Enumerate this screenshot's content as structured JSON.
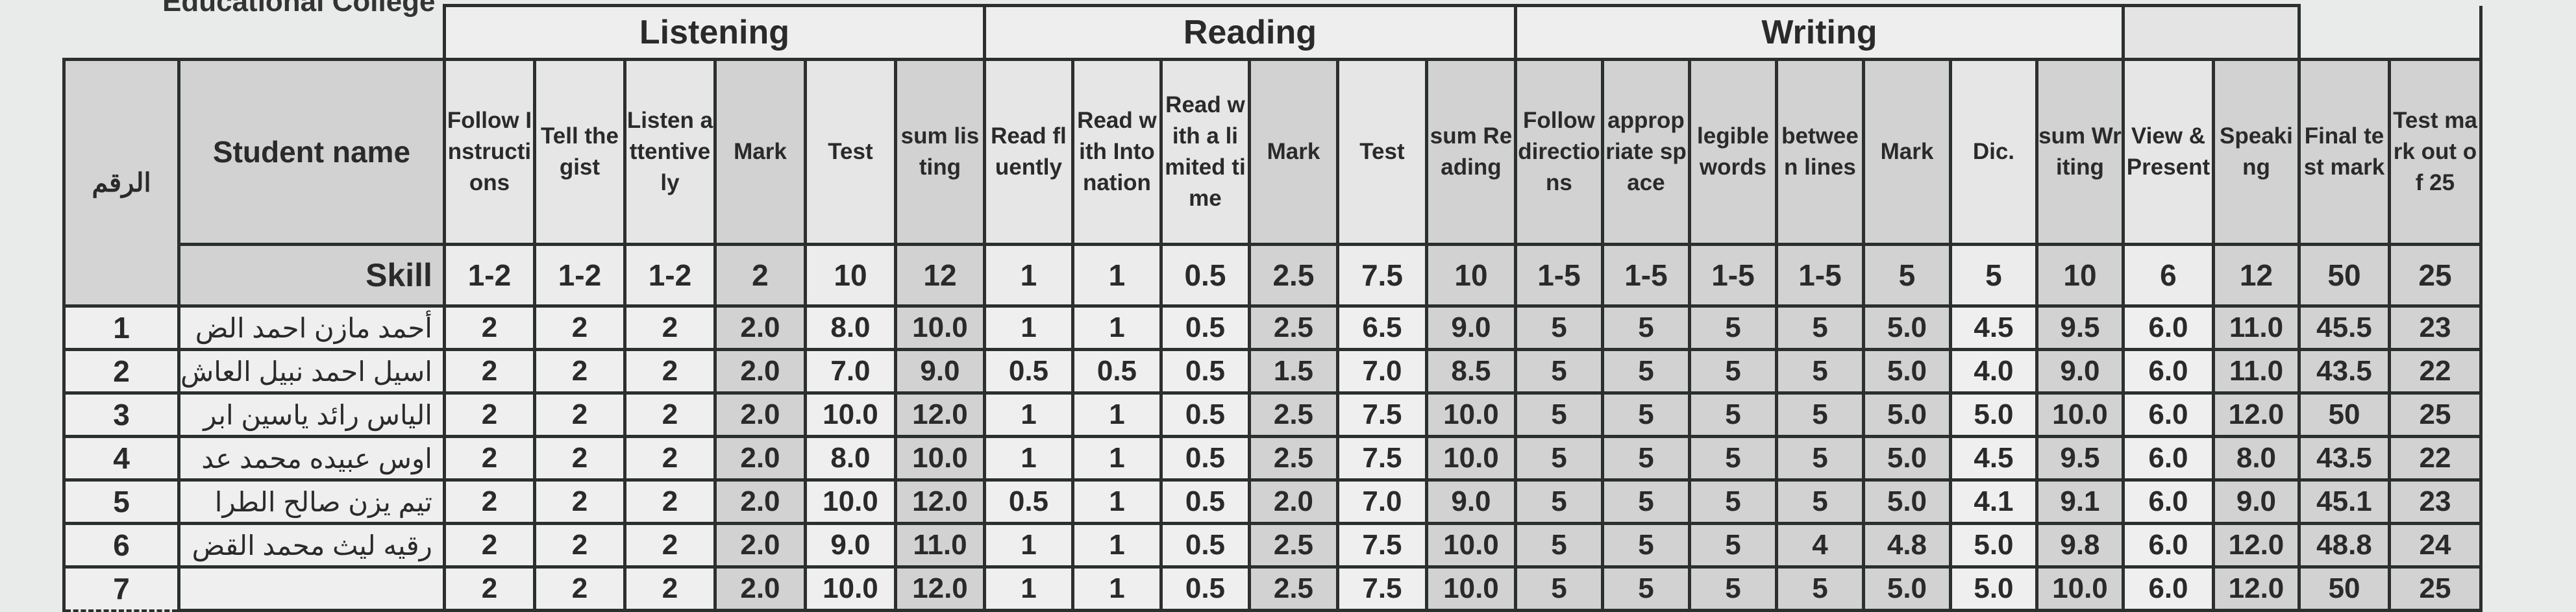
{
  "college": "Educational College",
  "sections": {
    "listening": "Listening",
    "reading": "Reading",
    "writing": "Writing"
  },
  "headers": {
    "rank": "الرقم",
    "name": "Student name",
    "columns": [
      "Follow Instructions",
      "Tell the gist",
      "Listen attentively",
      "Mark",
      "Test",
      "sum listing",
      "Read fluently",
      "Read with Intonation",
      "Read with a limited time",
      "Mark",
      "Test",
      "sum Reading",
      "Follow directions",
      "appropriate space",
      "legible words",
      "between lines",
      "Mark",
      "Dic.",
      "sum Writing",
      "View & Present",
      "Speaking",
      "Final test mark",
      "Test mark out of 25"
    ]
  },
  "skill": {
    "label": "Skill",
    "values": [
      "1-2",
      "1-2",
      "1-2",
      "2",
      "10",
      "12",
      "1",
      "1",
      "0.5",
      "2.5",
      "7.5",
      "10",
      "1-5",
      "1-5",
      "1-5",
      "1-5",
      "5",
      "5",
      "10",
      "6",
      "12",
      "50",
      "25"
    ]
  },
  "rows": [
    {
      "rank": "1",
      "name": "أحمد مازن احمد الض",
      "values": [
        "2",
        "2",
        "2",
        "2.0",
        "8.0",
        "10.0",
        "1",
        "1",
        "0.5",
        "2.5",
        "6.5",
        "9.0",
        "5",
        "5",
        "5",
        "5",
        "5.0",
        "4.5",
        "9.5",
        "6.0",
        "11.0",
        "45.5",
        "23"
      ]
    },
    {
      "rank": "2",
      "name": "اسيل احمد نبيل العاش",
      "values": [
        "2",
        "2",
        "2",
        "2.0",
        "7.0",
        "9.0",
        "0.5",
        "0.5",
        "0.5",
        "1.5",
        "7.0",
        "8.5",
        "5",
        "5",
        "5",
        "5",
        "5.0",
        "4.0",
        "9.0",
        "6.0",
        "11.0",
        "43.5",
        "22"
      ]
    },
    {
      "rank": "3",
      "name": "الياس رائد ياسين ابر",
      "values": [
        "2",
        "2",
        "2",
        "2.0",
        "10.0",
        "12.0",
        "1",
        "1",
        "0.5",
        "2.5",
        "7.5",
        "10.0",
        "5",
        "5",
        "5",
        "5",
        "5.0",
        "5.0",
        "10.0",
        "6.0",
        "12.0",
        "50",
        "25"
      ]
    },
    {
      "rank": "4",
      "name": "اوس عبيده محمد عد",
      "values": [
        "2",
        "2",
        "2",
        "2.0",
        "8.0",
        "10.0",
        "1",
        "1",
        "0.5",
        "2.5",
        "7.5",
        "10.0",
        "5",
        "5",
        "5",
        "5",
        "5.0",
        "4.5",
        "9.5",
        "6.0",
        "8.0",
        "43.5",
        "22"
      ]
    },
    {
      "rank": "5",
      "name": "تيم يزن صالح الطرا",
      "values": [
        "2",
        "2",
        "2",
        "2.0",
        "10.0",
        "12.0",
        "0.5",
        "1",
        "0.5",
        "2.0",
        "7.0",
        "9.0",
        "5",
        "5",
        "5",
        "5",
        "5.0",
        "4.1",
        "9.1",
        "6.0",
        "9.0",
        "45.1",
        "23"
      ]
    },
    {
      "rank": "6",
      "name": "رقيه ليث محمد القض",
      "values": [
        "2",
        "2",
        "2",
        "2.0",
        "9.0",
        "11.0",
        "1",
        "1",
        "0.5",
        "2.5",
        "7.5",
        "10.0",
        "5",
        "5",
        "5",
        "4",
        "4.8",
        "5.0",
        "9.8",
        "6.0",
        "12.0",
        "48.8",
        "24"
      ]
    },
    {
      "rank": "7",
      "name": "",
      "values": [
        "2",
        "2",
        "2",
        "2.0",
        "10.0",
        "12.0",
        "1",
        "1",
        "0.5",
        "2.5",
        "7.5",
        "10.0",
        "5",
        "5",
        "5",
        "5",
        "5.0",
        "5.0",
        "10.0",
        "6.0",
        "12.0",
        "50",
        "25"
      ]
    }
  ],
  "shaded_columns": [
    3,
    5,
    9,
    11,
    12,
    13,
    14,
    15,
    16,
    18,
    20,
    21,
    22
  ],
  "colors": {
    "border": "#2b2f2d",
    "shade": "#d2d2d2",
    "cell": "#efefef"
  }
}
